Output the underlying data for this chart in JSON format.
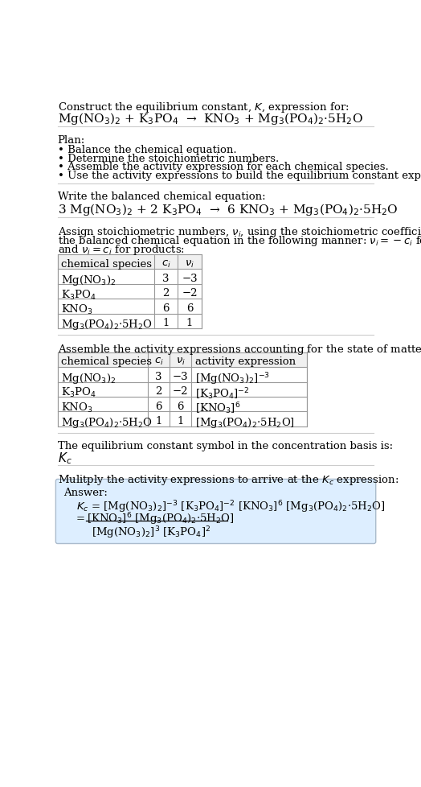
{
  "bg_color": "#ffffff",
  "text_color": "#000000",
  "title_line1": "Construct the equilibrium constant, $K$, expression for:",
  "title_line2": "Mg(NO$_3$)$_2$ + K$_3$PO$_4$  →  KNO$_3$ + Mg$_3$(PO$_4$)$_2$·5H$_2$O",
  "plan_header": "Plan:",
  "plan_bullets": [
    "• Balance the chemical equation.",
    "• Determine the stoichiometric numbers.",
    "• Assemble the activity expression for each chemical species.",
    "• Use the activity expressions to build the equilibrium constant expression."
  ],
  "balanced_header": "Write the balanced chemical equation:",
  "balanced_eq": "3 Mg(NO$_3$)$_2$ + 2 K$_3$PO$_4$  →  6 KNO$_3$ + Mg$_3$(PO$_4$)$_2$·5H$_2$O",
  "stoich_header_lines": [
    "Assign stoichiometric numbers, $\\nu_i$, using the stoichiometric coefficients, $c_i$, from",
    "the balanced chemical equation in the following manner: $\\nu_i = -c_i$ for reactants",
    "and $\\nu_i = c_i$ for products:"
  ],
  "table1_headers": [
    "chemical species",
    "$c_i$",
    "$\\nu_i$"
  ],
  "table1_rows": [
    [
      "Mg(NO$_3$)$_2$",
      "3",
      "−3"
    ],
    [
      "K$_3$PO$_4$",
      "2",
      "−2"
    ],
    [
      "KNO$_3$",
      "6",
      "6"
    ],
    [
      "Mg$_3$(PO$_4$)$_2$·5H$_2$O",
      "1",
      "1"
    ]
  ],
  "activity_header": "Assemble the activity expressions accounting for the state of matter and $\\nu_i$:",
  "table2_headers": [
    "chemical species",
    "$c_i$",
    "$\\nu_i$",
    "activity expression"
  ],
  "table2_rows": [
    [
      "Mg(NO$_3$)$_2$",
      "3",
      "−3",
      "[Mg(NO$_3$)$_2$]$^{-3}$"
    ],
    [
      "K$_3$PO$_4$",
      "2",
      "−2",
      "[K$_3$PO$_4$]$^{-2}$"
    ],
    [
      "KNO$_3$",
      "6",
      "6",
      "[KNO$_3$]$^6$"
    ],
    [
      "Mg$_3$(PO$_4$)$_2$·5H$_2$O",
      "1",
      "1",
      "[Mg$_3$(PO$_4$)$_2$·5H$_2$O]"
    ]
  ],
  "kc_header": "The equilibrium constant symbol in the concentration basis is:",
  "kc_symbol": "$K_c$",
  "multiply_header": "Mulitply the activity expressions to arrive at the $K_c$ expression:",
  "answer_label": "Answer:",
  "answer_line1": "$K_c$ = [Mg(NO$_3$)$_2$]$^{-3}$ [K$_3$PO$_4$]$^{-2}$ [KNO$_3$]$^6$ [Mg$_3$(PO$_4$)$_2$·5H$_2$O]",
  "answer_eq_sign": "=",
  "answer_numerator": "[KNO$_3$]$^6$ [Mg$_3$(PO$_4$)$_2$·5H$_2$O]",
  "answer_denominator": "[Mg(NO$_3$)$_2$]$^3$ [K$_3$PO$_4$]$^2$",
  "answer_box_color": "#ddeeff",
  "answer_box_border": "#aabbcc",
  "table_bg": "#ffffff",
  "table_border": "#999999",
  "table_header_bg": "#f0f0f0",
  "font_size": 9.5,
  "small_font": 9.0
}
